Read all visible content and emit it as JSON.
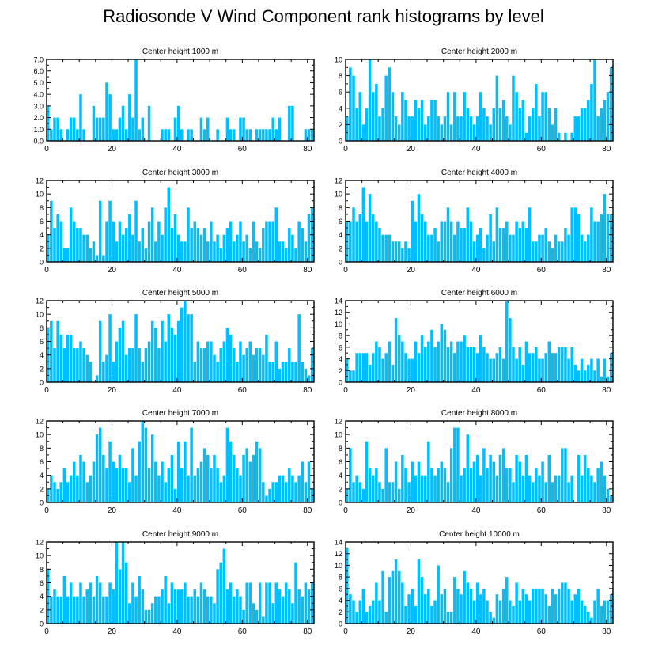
{
  "figure": {
    "title": "Radiosonde V Wind Component rank histograms by level",
    "bar_color": "#00BFFF",
    "bar_edge_color": "#ffffff",
    "axis_color": "#000000"
  },
  "chart_data": [
    {
      "type": "bar",
      "title": "Center height 1000 m",
      "xlim": [
        0,
        82
      ],
      "ylim": [
        0,
        7
      ],
      "xticks": [
        0,
        20,
        40,
        60,
        80
      ],
      "yticks": [
        0,
        1,
        2,
        3,
        4,
        5,
        6,
        7
      ],
      "ytick_labels": [
        "0.0",
        "1.0",
        "2.0",
        "3.0",
        "4.0",
        "5.0",
        "6.0",
        "7.0"
      ],
      "values": [
        3,
        1,
        2,
        2,
        1,
        0,
        1,
        2,
        2,
        1,
        4,
        1,
        0,
        0,
        3,
        2,
        2,
        2,
        5,
        4,
        1,
        1,
        2,
        3,
        1,
        4,
        2,
        7,
        1,
        2,
        0,
        3,
        0,
        0,
        0,
        1,
        1,
        1,
        0,
        2,
        3,
        1,
        0,
        1,
        1,
        0,
        0,
        2,
        1,
        2,
        0,
        0,
        1,
        0,
        0,
        2,
        1,
        1,
        0,
        2,
        2,
        1,
        1,
        0,
        1,
        1,
        1,
        1,
        1,
        2,
        1,
        2,
        0,
        0,
        3,
        3,
        0,
        0,
        0,
        1,
        1,
        1
      ]
    },
    {
      "type": "bar",
      "title": "Center height 2000 m",
      "xlim": [
        0,
        82
      ],
      "ylim": [
        0,
        10
      ],
      "xticks": [
        0,
        20,
        40,
        60,
        80
      ],
      "yticks": [
        0,
        2,
        4,
        6,
        8,
        10
      ],
      "ytick_labels": [
        "0",
        "2",
        "4",
        "6",
        "8",
        "10"
      ],
      "values": [
        3,
        9,
        8,
        4,
        6,
        2,
        4,
        10,
        6,
        7,
        3,
        4,
        8,
        9,
        6,
        3,
        2,
        6,
        5,
        3,
        3,
        5,
        4,
        5,
        2,
        3,
        5,
        5,
        3,
        2,
        3,
        6,
        2,
        6,
        3,
        3,
        6,
        4,
        3,
        2,
        3,
        6,
        4,
        3,
        2,
        4,
        8,
        4,
        5,
        3,
        2,
        8,
        6,
        4,
        5,
        1,
        3,
        4,
        7,
        3,
        6,
        6,
        4,
        2,
        4,
        1,
        0,
        1,
        0,
        1,
        3,
        3,
        4,
        4,
        5,
        7,
        10,
        3,
        4,
        5,
        6,
        9
      ]
    },
    {
      "type": "bar",
      "title": "Center height 3000 m",
      "xlim": [
        0,
        82
      ],
      "ylim": [
        0,
        12
      ],
      "xticks": [
        0,
        20,
        40,
        60,
        80
      ],
      "yticks": [
        0,
        2,
        4,
        6,
        8,
        10,
        12
      ],
      "ytick_labels": [
        "0",
        "2",
        "4",
        "6",
        "8",
        "10",
        "12"
      ],
      "values": [
        4,
        9,
        5,
        7,
        6,
        2,
        2,
        8,
        6,
        5,
        5,
        4,
        4,
        2,
        3,
        1,
        9,
        1,
        6,
        9,
        6,
        3,
        6,
        4,
        5,
        7,
        4,
        9,
        3,
        5,
        2,
        6,
        8,
        3,
        6,
        4,
        8,
        11,
        5,
        7,
        4,
        3,
        3,
        8,
        5,
        6,
        5,
        4,
        5,
        3,
        6,
        3,
        4,
        2,
        4,
        5,
        6,
        3,
        4,
        6,
        3,
        4,
        2,
        6,
        3,
        2,
        5,
        6,
        6,
        6,
        8,
        3,
        3,
        2,
        5,
        4,
        2,
        6,
        5,
        3,
        7,
        8
      ]
    },
    {
      "type": "bar",
      "title": "Center height 4000 m",
      "xlim": [
        0,
        82
      ],
      "ylim": [
        0,
        12
      ],
      "xticks": [
        0,
        20,
        40,
        60,
        80
      ],
      "yticks": [
        0,
        2,
        4,
        6,
        8,
        10,
        12
      ],
      "ytick_labels": [
        "0",
        "2",
        "4",
        "6",
        "8",
        "10",
        "12"
      ],
      "values": [
        6,
        6,
        8,
        6,
        7,
        11,
        6,
        10,
        7,
        6,
        5,
        4,
        4,
        4,
        3,
        3,
        3,
        2,
        3,
        2,
        9,
        6,
        10,
        7,
        6,
        4,
        4,
        5,
        3,
        6,
        6,
        8,
        6,
        4,
        6,
        5,
        5,
        8,
        6,
        3,
        4,
        5,
        2,
        4,
        7,
        3,
        8,
        5,
        5,
        6,
        4,
        4,
        6,
        5,
        6,
        5,
        8,
        3,
        3,
        4,
        4,
        5,
        3,
        2,
        4,
        3,
        3,
        5,
        4,
        8,
        8,
        7,
        4,
        3,
        4,
        8,
        6,
        6,
        7,
        10,
        7,
        7
      ]
    },
    {
      "type": "bar",
      "title": "Center height 5000 m",
      "xlim": [
        0,
        82
      ],
      "ylim": [
        0,
        12
      ],
      "xticks": [
        0,
        20,
        40,
        60,
        80
      ],
      "yticks": [
        0,
        2,
        4,
        6,
        8,
        10,
        12
      ],
      "ytick_labels": [
        "0",
        "2",
        "4",
        "6",
        "8",
        "10",
        "12"
      ],
      "values": [
        8,
        9,
        5,
        9,
        7,
        5,
        7,
        7,
        5,
        5,
        6,
        5,
        4,
        3,
        0,
        1,
        9,
        3,
        4,
        10,
        3,
        6,
        8,
        9,
        4,
        5,
        5,
        10,
        5,
        3,
        5,
        6,
        9,
        8,
        5,
        9,
        6,
        10,
        8,
        7,
        9,
        11,
        12,
        10,
        10,
        3,
        6,
        5,
        5,
        6,
        6,
        4,
        3,
        5,
        6,
        8,
        7,
        5,
        3,
        6,
        4,
        5,
        6,
        4,
        5,
        5,
        4,
        7,
        3,
        3,
        6,
        2,
        3,
        3,
        5,
        3,
        3,
        10,
        3,
        2,
        1,
        5
      ]
    },
    {
      "type": "bar",
      "title": "Center height 6000 m",
      "xlim": [
        0,
        82
      ],
      "ylim": [
        0,
        14
      ],
      "xticks": [
        0,
        20,
        40,
        60,
        80
      ],
      "yticks": [
        0,
        2,
        4,
        6,
        8,
        10,
        12,
        14
      ],
      "ytick_labels": [
        "0",
        "2",
        "4",
        "6",
        "8",
        "10",
        "12",
        "14"
      ],
      "values": [
        4,
        2,
        2,
        5,
        5,
        5,
        5,
        3,
        5,
        7,
        6,
        4,
        5,
        7,
        3,
        11,
        8,
        7,
        5,
        4,
        4,
        7,
        5,
        8,
        6,
        7,
        9,
        6,
        7,
        10,
        9,
        6,
        7,
        5,
        7,
        7,
        8,
        6,
        6,
        6,
        5,
        8,
        6,
        5,
        4,
        4,
        5,
        6,
        4,
        14,
        11,
        6,
        4,
        6,
        3,
        7,
        5,
        5,
        6,
        4,
        4,
        5,
        7,
        5,
        5,
        6,
        6,
        6,
        4,
        6,
        3,
        2,
        4,
        2,
        3,
        4,
        2,
        4,
        1,
        4,
        1,
        5
      ]
    },
    {
      "type": "bar",
      "title": "Center height 7000 m",
      "xlim": [
        0,
        82
      ],
      "ylim": [
        0,
        12
      ],
      "xticks": [
        0,
        20,
        40,
        60,
        80
      ],
      "yticks": [
        0,
        2,
        4,
        6,
        8,
        10,
        12
      ],
      "ytick_labels": [
        "0",
        "2",
        "4",
        "6",
        "8",
        "10",
        "12"
      ],
      "values": [
        2,
        4,
        3,
        2,
        3,
        5,
        3,
        4,
        6,
        4,
        7,
        6,
        3,
        4,
        6,
        10,
        11,
        7,
        5,
        9,
        6,
        5,
        7,
        5,
        5,
        3,
        8,
        4,
        9,
        12,
        11,
        5,
        10,
        6,
        4,
        6,
        3,
        5,
        7,
        2,
        9,
        5,
        9,
        4,
        11,
        4,
        5,
        6,
        8,
        7,
        5,
        7,
        5,
        3,
        4,
        11,
        9,
        7,
        5,
        4,
        7,
        8,
        6,
        7,
        9,
        8,
        3,
        1,
        2,
        3,
        3,
        4,
        4,
        3,
        5,
        4,
        3,
        4,
        6,
        3,
        6,
        2
      ]
    },
    {
      "type": "bar",
      "title": "Center height 8000 m",
      "xlim": [
        0,
        82
      ],
      "ylim": [
        0,
        12
      ],
      "xticks": [
        0,
        20,
        40,
        60,
        80
      ],
      "yticks": [
        0,
        2,
        4,
        6,
        8,
        10,
        12
      ],
      "ytick_labels": [
        "0",
        "2",
        "4",
        "6",
        "8",
        "10",
        "12"
      ],
      "values": [
        2,
        8,
        3,
        4,
        3,
        2,
        9,
        5,
        4,
        5,
        3,
        2,
        8,
        3,
        3,
        6,
        2,
        7,
        5,
        3,
        6,
        4,
        6,
        4,
        4,
        9,
        5,
        4,
        5,
        6,
        5,
        3,
        8,
        11,
        11,
        4,
        5,
        10,
        5,
        6,
        7,
        4,
        8,
        5,
        7,
        6,
        4,
        7,
        8,
        5,
        5,
        3,
        7,
        6,
        4,
        7,
        4,
        3,
        5,
        4,
        6,
        3,
        7,
        3,
        4,
        4,
        8,
        8,
        3,
        4,
        0,
        7,
        4,
        7,
        5,
        4,
        3,
        5,
        6,
        4,
        2,
        1
      ]
    },
    {
      "type": "bar",
      "title": "Center height 9000 m",
      "xlim": [
        0,
        82
      ],
      "ylim": [
        0,
        12
      ],
      "xticks": [
        0,
        20,
        40,
        60,
        80
      ],
      "yticks": [
        0,
        2,
        4,
        6,
        8,
        10,
        12
      ],
      "ytick_labels": [
        "0",
        "2",
        "4",
        "6",
        "8",
        "10",
        "12"
      ],
      "values": [
        8,
        4,
        5,
        4,
        4,
        7,
        4,
        6,
        4,
        4,
        6,
        4,
        5,
        6,
        4,
        7,
        6,
        4,
        4,
        6,
        5,
        12,
        8,
        12,
        9,
        3,
        6,
        4,
        7,
        5,
        2,
        2,
        3,
        4,
        4,
        5,
        7,
        3,
        6,
        5,
        5,
        5,
        6,
        4,
        4,
        5,
        4,
        6,
        5,
        4,
        4,
        3,
        8,
        9,
        11,
        5,
        6,
        4,
        5,
        4,
        2,
        6,
        6,
        3,
        2,
        6,
        1,
        6,
        6,
        3,
        6,
        5,
        4,
        6,
        5,
        3,
        9,
        5,
        4,
        6,
        5,
        6
      ]
    },
    {
      "type": "bar",
      "title": "Center height 10000 m",
      "xlim": [
        0,
        82
      ],
      "ylim": [
        0,
        14
      ],
      "xticks": [
        0,
        20,
        40,
        60,
        80
      ],
      "yticks": [
        0,
        2,
        4,
        6,
        8,
        10,
        12,
        14
      ],
      "ytick_labels": [
        "0",
        "2",
        "4",
        "6",
        "8",
        "10",
        "12",
        "14"
      ],
      "values": [
        13,
        5,
        4,
        2,
        4,
        6,
        2,
        3,
        4,
        7,
        4,
        9,
        2,
        8,
        9,
        11,
        9,
        7,
        3,
        5,
        6,
        3,
        11,
        8,
        5,
        6,
        3,
        4,
        10,
        5,
        6,
        2,
        2,
        8,
        6,
        5,
        9,
        7,
        6,
        4,
        7,
        5,
        6,
        4,
        2,
        1,
        5,
        4,
        6,
        8,
        4,
        3,
        7,
        4,
        6,
        5,
        4,
        6,
        6,
        6,
        6,
        5,
        3,
        6,
        5,
        6,
        7,
        7,
        6,
        4,
        5,
        6,
        4,
        3,
        2,
        1,
        4,
        6,
        3,
        4,
        4,
        5
      ]
    }
  ]
}
